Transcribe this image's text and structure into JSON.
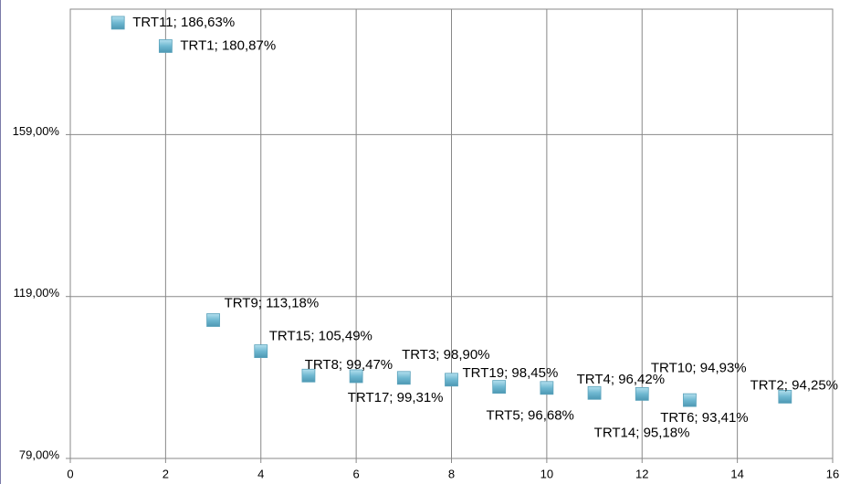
{
  "chart_data": {
    "type": "scatter",
    "series": [
      {
        "color": "#6fb8d1",
        "x": [
          1,
          2,
          3,
          4,
          5,
          6,
          7,
          8,
          9,
          10,
          11,
          12,
          13,
          15
        ],
        "values": [
          186.63,
          180.87,
          113.18,
          105.49,
          99.47,
          99.31,
          98.9,
          98.45,
          96.68,
          96.42,
          95.18,
          94.93,
          93.41,
          94.25
        ],
        "value_labels": [
          "TRT11; 186,63%",
          "TRT1; 180,87%",
          "TRT9; 113,18%",
          "TRT15; 105,49%",
          "TRT8; 99,47%",
          "TRT17; 99,31%",
          "TRT3; 98,90%",
          "TRT19; 98,45%",
          "TRT5; 96,68%",
          "TRT4; 96,42%",
          "TRT14; 95,18%",
          "TRT10; 94,93%",
          "TRT6; 93,41%",
          "TRT2; 94,25%"
        ]
      }
    ],
    "xlim": [
      0,
      16
    ],
    "xticks": [
      0,
      2,
      4,
      6,
      8,
      10,
      12,
      14,
      16
    ],
    "ylim": [
      79,
      190
    ],
    "yticks": [
      {
        "value": 79,
        "label": "79,00%"
      },
      {
        "value": 119,
        "label": "119,00%"
      },
      {
        "value": 159,
        "label": "159,00%"
      }
    ],
    "grid": true
  }
}
